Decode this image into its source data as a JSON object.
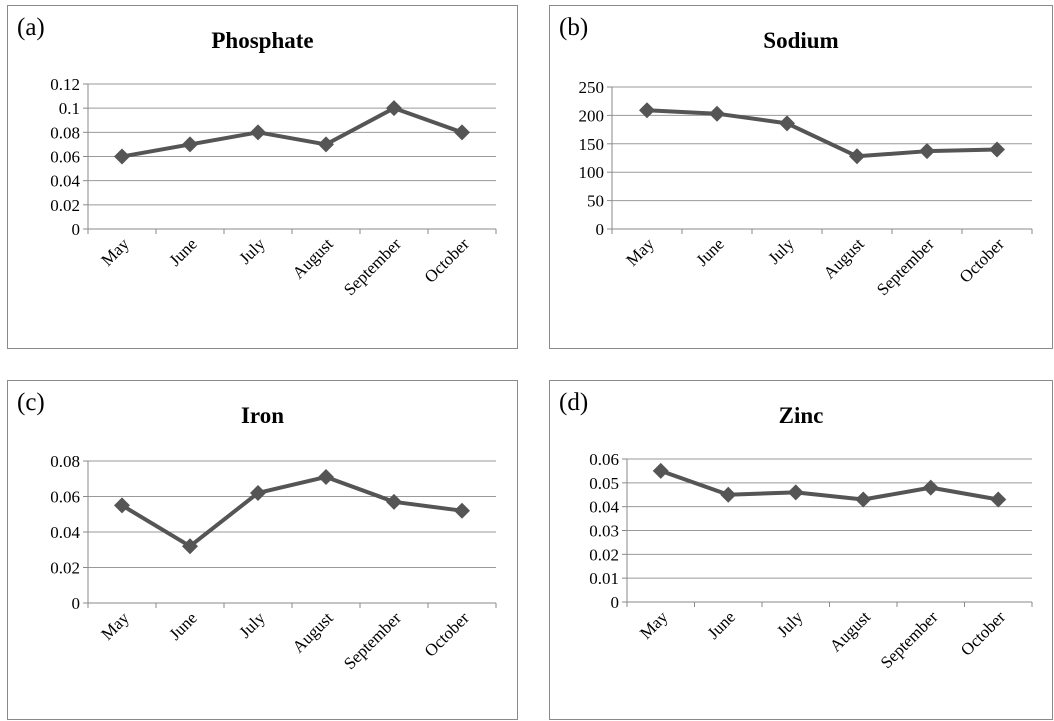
{
  "chart_data": [
    {
      "type": "line",
      "panel_label": "(a)",
      "title": "Phosphate",
      "categories": [
        "May",
        "June",
        "July",
        "August",
        "September",
        "October"
      ],
      "values": [
        0.06,
        0.07,
        0.08,
        0.07,
        0.1,
        0.08
      ],
      "ylim": [
        0,
        0.12
      ],
      "yticks": [
        "0",
        "0.02",
        "0.04",
        "0.06",
        "0.08",
        "0.1",
        "0.12"
      ],
      "grid": true,
      "series_color": "#555555",
      "marker": "diamond"
    },
    {
      "type": "line",
      "panel_label": "(b)",
      "title": "Sodium",
      "categories": [
        "May",
        "June",
        "July",
        "August",
        "September",
        "October"
      ],
      "values": [
        209,
        203,
        186,
        128,
        137,
        140
      ],
      "ylim": [
        0,
        250
      ],
      "yticks": [
        "0",
        "50",
        "100",
        "150",
        "200",
        "250"
      ],
      "grid": true,
      "series_color": "#555555",
      "marker": "diamond"
    },
    {
      "type": "line",
      "panel_label": "(c)",
      "title": "Iron",
      "categories": [
        "May",
        "June",
        "July",
        "August",
        "September",
        "October"
      ],
      "values": [
        0.055,
        0.032,
        0.062,
        0.071,
        0.057,
        0.052
      ],
      "ylim": [
        0,
        0.08
      ],
      "yticks": [
        "0",
        "0.02",
        "0.04",
        "0.06",
        "0.08"
      ],
      "grid": true,
      "series_color": "#555555",
      "marker": "diamond"
    },
    {
      "type": "line",
      "panel_label": "(d)",
      "title": "Zinc",
      "categories": [
        "May",
        "June",
        "July",
        "August",
        "September",
        "October"
      ],
      "values": [
        0.055,
        0.045,
        0.046,
        0.043,
        0.048,
        0.043
      ],
      "ylim": [
        0,
        0.06
      ],
      "yticks": [
        "0",
        "0.01",
        "0.02",
        "0.03",
        "0.04",
        "0.05",
        "0.06"
      ],
      "grid": true,
      "series_color": "#555555",
      "marker": "diamond"
    }
  ]
}
